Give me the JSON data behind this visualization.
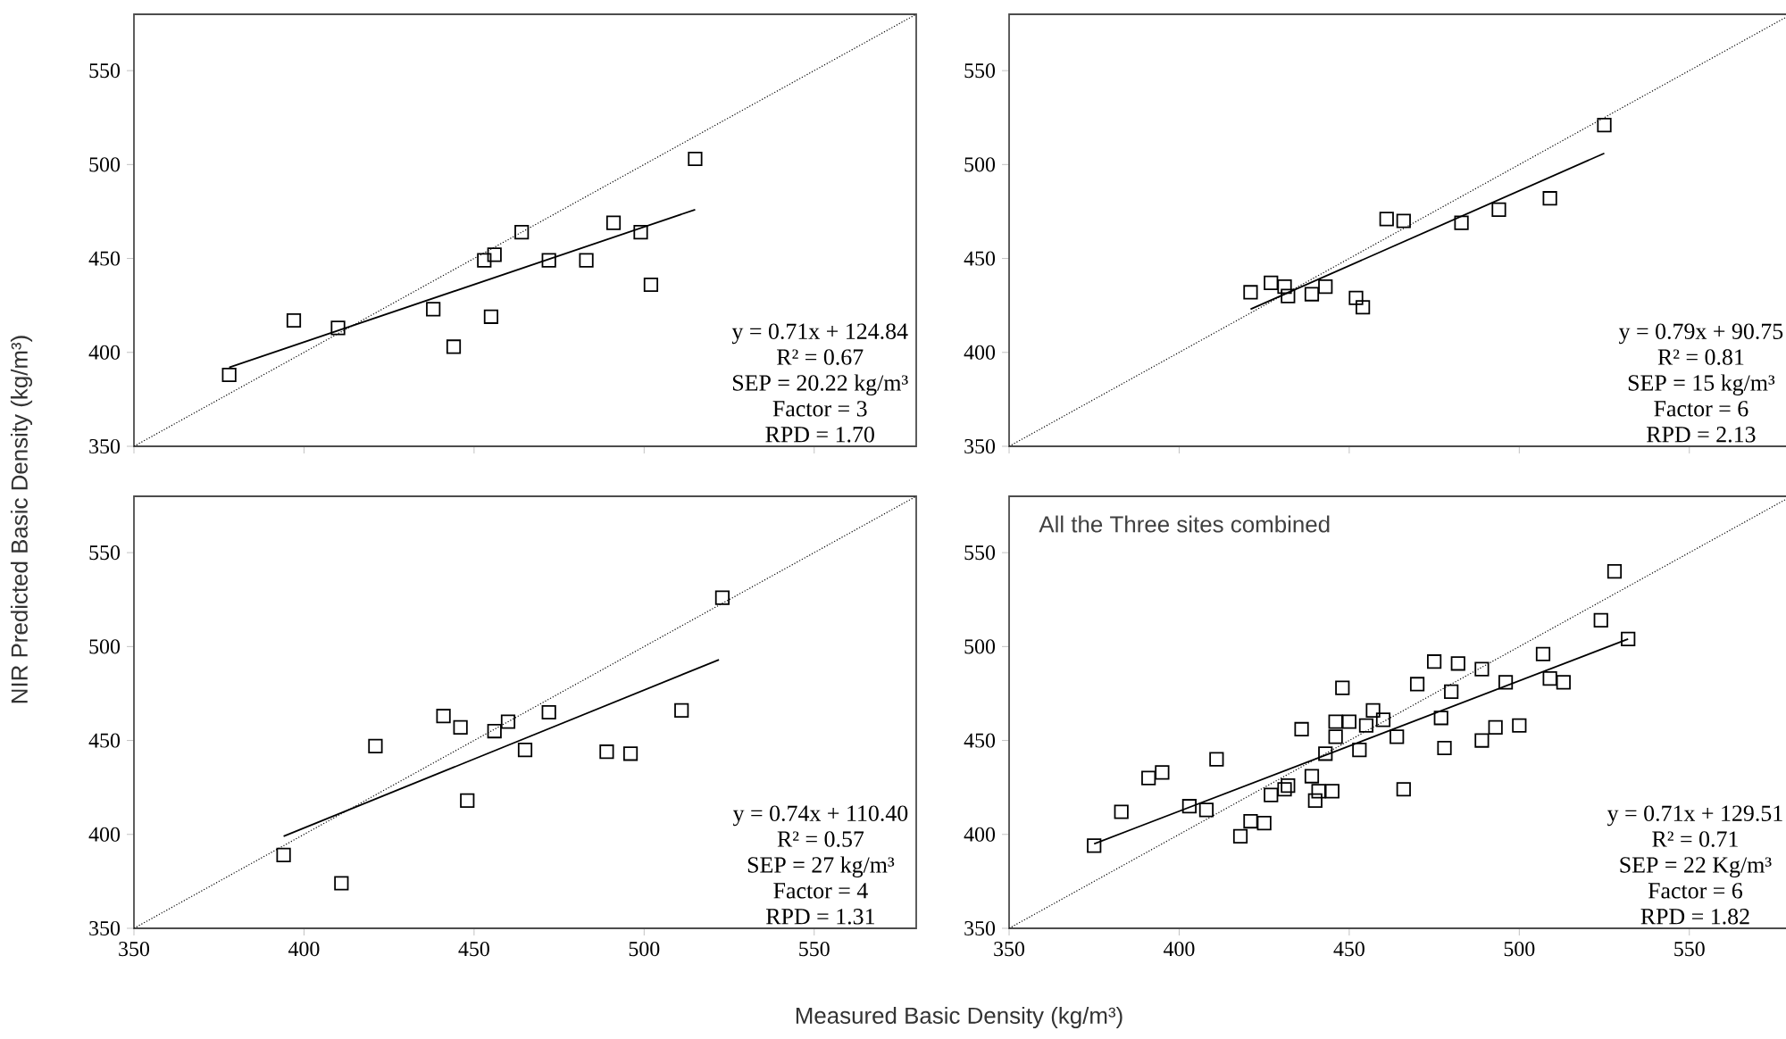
{
  "chart_data": [
    {
      "type": "scatter",
      "ylabel": "NIR Predicted Basic Density (kg/m³)",
      "xlim": [
        350,
        580
      ],
      "ylim": [
        350,
        580
      ],
      "xticks": [
        350,
        400,
        450,
        500,
        550
      ],
      "yticks": [
        350,
        400,
        450,
        500,
        550
      ],
      "tick_labels": "y",
      "marker": "square",
      "grid": false,
      "annotations": [
        "y = 0.71x + 124.84",
        "R² = 0.67",
        "SEP = 20.22 kg/m³",
        "Factor = 3",
        "RPD = 1.70"
      ],
      "series": [
        {
          "type": "scatter",
          "color": "#000000",
          "x": [
            378,
            397,
            410,
            438,
            444,
            453,
            456,
            455,
            464,
            472,
            483,
            491,
            499,
            502,
            515
          ],
          "values": [
            388,
            417,
            413,
            423,
            403,
            449,
            452,
            419,
            464,
            449,
            449,
            469,
            464,
            436,
            503
          ]
        },
        {
          "type": "line",
          "marker": "none",
          "color": "#000000",
          "line_style": "solid",
          "x": [
            378,
            515
          ],
          "values": [
            392,
            476
          ]
        },
        {
          "type": "line",
          "marker": "none",
          "color": "#000000",
          "line_style": "dotted",
          "x": [
            350,
            580
          ],
          "values": [
            350,
            580
          ]
        }
      ]
    },
    {
      "type": "scatter",
      "xlim": [
        350,
        580
      ],
      "ylim": [
        350,
        580
      ],
      "xticks": [
        350,
        400,
        450,
        500,
        550
      ],
      "yticks": [
        350,
        400,
        450,
        500,
        550
      ],
      "tick_labels": "y",
      "marker": "square",
      "grid": false,
      "annotations": [
        "y = 0.79x + 90.75",
        "R² = 0.81",
        "SEP = 15 kg/m³",
        "Factor = 6",
        "RPD = 2.13"
      ],
      "series": [
        {
          "type": "scatter",
          "color": "#000000",
          "x": [
            421,
            427,
            431,
            432,
            439,
            443,
            452,
            454,
            461,
            466,
            483,
            494,
            509,
            525
          ],
          "values": [
            432,
            437,
            435,
            430,
            431,
            435,
            429,
            424,
            471,
            470,
            469,
            476,
            482,
            521
          ]
        },
        {
          "type": "line",
          "marker": "none",
          "color": "#000000",
          "line_style": "solid",
          "x": [
            421,
            525
          ],
          "values": [
            423,
            506
          ]
        },
        {
          "type": "line",
          "marker": "none",
          "color": "#000000",
          "line_style": "dotted",
          "x": [
            350,
            580
          ],
          "values": [
            350,
            580
          ]
        }
      ]
    },
    {
      "type": "scatter",
      "xlabel": "Measured Basic Density (kg/m³)",
      "xlim": [
        350,
        580
      ],
      "ylim": [
        350,
        580
      ],
      "xticks": [
        350,
        400,
        450,
        500,
        550
      ],
      "yticks": [
        350,
        400,
        450,
        500,
        550
      ],
      "marker": "square",
      "grid": false,
      "annotations": [
        "y = 0.74x + 110.40",
        "R² = 0.57",
        "SEP = 27 kg/m³",
        "Factor = 4",
        "RPD = 1.31"
      ],
      "series": [
        {
          "type": "scatter",
          "color": "#000000",
          "x": [
            394,
            411,
            421,
            441,
            446,
            448,
            456,
            460,
            465,
            472,
            489,
            496,
            511,
            523
          ],
          "values": [
            389,
            374,
            447,
            463,
            457,
            418,
            455,
            460,
            445,
            465,
            444,
            443,
            466,
            526
          ]
        },
        {
          "type": "line",
          "marker": "none",
          "color": "#000000",
          "line_style": "solid",
          "x": [
            394,
            522
          ],
          "values": [
            399,
            493
          ]
        },
        {
          "type": "line",
          "marker": "none",
          "color": "#000000",
          "line_style": "dotted",
          "x": [
            350,
            580
          ],
          "values": [
            350,
            580
          ]
        }
      ]
    },
    {
      "type": "scatter",
      "title": "All the Three sites combined",
      "xlim": [
        350,
        580
      ],
      "ylim": [
        350,
        580
      ],
      "xticks": [
        350,
        400,
        450,
        500,
        550
      ],
      "yticks": [
        350,
        400,
        450,
        500,
        550
      ],
      "marker": "square",
      "grid": false,
      "annotations": [
        "y = 0.71x + 129.51",
        "R² = 0.71",
        "SEP = 22 Kg/m³",
        "Factor = 6",
        "RPD = 1.82"
      ],
      "series": [
        {
          "type": "scatter",
          "color": "#000000",
          "x": [
            375,
            383,
            391,
            395,
            403,
            408,
            411,
            418,
            421,
            425,
            427,
            431,
            432,
            436,
            439,
            440,
            441,
            443,
            445,
            446,
            446,
            448,
            450,
            453,
            455,
            457,
            460,
            464,
            466,
            470,
            475,
            477,
            478,
            480,
            482,
            489,
            489,
            493,
            496,
            500,
            507,
            509,
            513,
            524,
            528,
            532
          ],
          "values": [
            394,
            412,
            430,
            433,
            415,
            413,
            440,
            399,
            407,
            406,
            421,
            424,
            426,
            456,
            431,
            418,
            423,
            443,
            423,
            452,
            460,
            478,
            460,
            445,
            458,
            466,
            461,
            452,
            424,
            480,
            492,
            462,
            446,
            476,
            491,
            450,
            488,
            457,
            481,
            458,
            496,
            483,
            481,
            514,
            540,
            504
          ]
        },
        {
          "type": "line",
          "marker": "none",
          "color": "#000000",
          "line_style": "solid",
          "x": [
            375,
            532
          ],
          "values": [
            395,
            504
          ]
        },
        {
          "type": "line",
          "marker": "none",
          "color": "#000000",
          "line_style": "dotted",
          "x": [
            350,
            580
          ],
          "values": [
            350,
            580
          ]
        }
      ]
    }
  ]
}
